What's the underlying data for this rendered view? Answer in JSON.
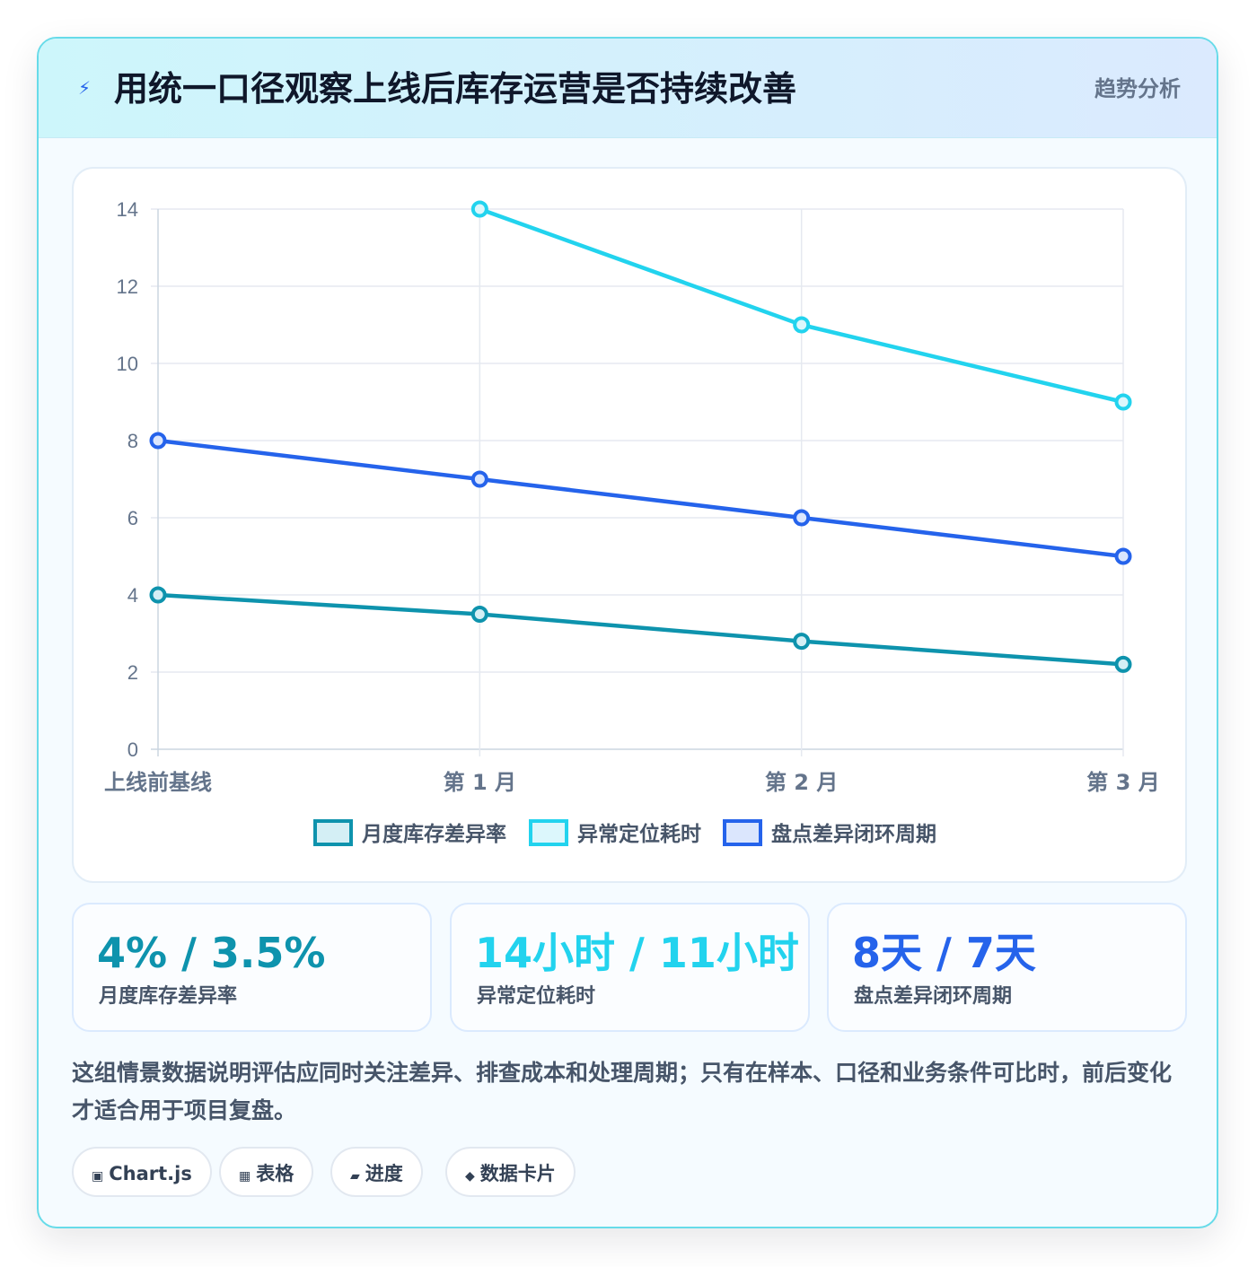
{
  "header": {
    "icon": "lightning-bolt-icon",
    "title": "用统一口径观察上线后库存运营是否持续改善",
    "tag": "趋势分析"
  },
  "chart_data": {
    "type": "line",
    "categories": [
      "上线前基线",
      "第 1 月",
      "第 2 月",
      "第 3 月"
    ],
    "ylim": [
      0,
      14
    ],
    "yticks": [
      0,
      2,
      4,
      6,
      8,
      10,
      12,
      14
    ],
    "grid": true,
    "legend_position": "bottom",
    "series": [
      {
        "name": "月度库存差异率",
        "color": "#0e93ad",
        "fill": "#d4eff5",
        "values": [
          4,
          3.5,
          2.8,
          2.2
        ]
      },
      {
        "name": "异常定位耗时",
        "color": "#22d3ee",
        "fill": "#dcf7fc",
        "values": [
          null,
          14,
          11,
          9
        ]
      },
      {
        "name": "盘点差异闭环周期",
        "color": "#2563eb",
        "fill": "#dbe6fd",
        "values": [
          8,
          7,
          6,
          5
        ]
      }
    ]
  },
  "stats": [
    {
      "value": "4% / 3.5%",
      "label": "月度库存差异率",
      "color": "#0e93ad"
    },
    {
      "value": "14小时 / 11小时",
      "label": "异常定位耗时",
      "color": "#22d3ee"
    },
    {
      "value": "8天 / 7天",
      "label": "盘点差异闭环周期",
      "color": "#2563eb"
    }
  ],
  "note": "这组情景数据说明评估应同时关注差异、排查成本和处理周期；只有在样本、口径和业务条件可比时，前后变化才适合用于项目复盘。",
  "chips": [
    {
      "icon": "chart-box-icon",
      "glyph": "▣",
      "label": "Chart.js"
    },
    {
      "icon": "table-icon",
      "glyph": "▦",
      "label": "表格"
    },
    {
      "icon": "progress-icon",
      "glyph": "▰",
      "label": "进度"
    },
    {
      "icon": "diamond-icon",
      "glyph": "◆",
      "label": "数据卡片"
    }
  ]
}
